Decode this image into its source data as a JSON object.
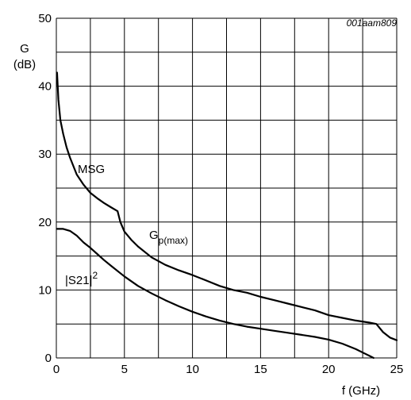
{
  "chart_data": {
    "type": "line",
    "figure_id": "001aam809",
    "ylabel": "G",
    "ylabel_unit": "(dB)",
    "xlabel": "f (GHz)",
    "xlim": [
      0,
      25
    ],
    "ylim": [
      0,
      50
    ],
    "x_ticks": [
      0,
      5,
      10,
      15,
      20,
      25
    ],
    "y_ticks": [
      0,
      10,
      20,
      30,
      40,
      50
    ],
    "grid": true,
    "annotations": [
      {
        "text": "MSG"
      },
      {
        "base": "G",
        "sub": "p(max)"
      },
      {
        "base": "|S21|",
        "sup": "2"
      }
    ],
    "series": [
      {
        "points": [
          [
            0.05,
            42
          ],
          [
            0.15,
            38
          ],
          [
            0.3,
            35
          ],
          [
            0.5,
            33
          ],
          [
            0.75,
            31
          ],
          [
            1.0,
            29.5
          ],
          [
            1.5,
            27
          ],
          [
            2.0,
            25.5
          ],
          [
            2.5,
            24.3
          ],
          [
            3.0,
            23.5
          ],
          [
            3.5,
            22.8
          ],
          [
            4.0,
            22.2
          ],
          [
            4.5,
            21.6
          ],
          [
            4.7,
            20
          ],
          [
            5.0,
            18.6
          ],
          [
            5.5,
            17.4
          ],
          [
            6.0,
            16.4
          ],
          [
            7.0,
            14.8
          ],
          [
            8.0,
            13.7
          ],
          [
            9.0,
            12.9
          ],
          [
            10.0,
            12.2
          ],
          [
            11.0,
            11.4
          ],
          [
            12.0,
            10.6
          ],
          [
            13.0,
            10.0
          ],
          [
            14.0,
            9.6
          ],
          [
            15.0,
            9.0
          ],
          [
            16.0,
            8.5
          ],
          [
            17.0,
            8.0
          ],
          [
            18.0,
            7.5
          ],
          [
            19.0,
            7.0
          ],
          [
            20.0,
            6.3
          ],
          [
            21.0,
            5.9
          ],
          [
            22.0,
            5.5
          ],
          [
            23.0,
            5.2
          ],
          [
            23.5,
            5.0
          ],
          [
            24.0,
            3.8
          ],
          [
            24.5,
            3.0
          ],
          [
            25.0,
            2.6
          ]
        ]
      },
      {
        "points": [
          [
            0.05,
            19.0
          ],
          [
            0.5,
            19.0
          ],
          [
            1.0,
            18.7
          ],
          [
            1.5,
            18.0
          ],
          [
            2.0,
            17.0
          ],
          [
            2.5,
            16.2
          ],
          [
            3.0,
            15.3
          ],
          [
            3.5,
            14.4
          ],
          [
            4.0,
            13.6
          ],
          [
            5.0,
            12.0
          ],
          [
            6.0,
            10.6
          ],
          [
            7.0,
            9.5
          ],
          [
            8.0,
            8.5
          ],
          [
            9.0,
            7.6
          ],
          [
            10.0,
            6.8
          ],
          [
            11.0,
            6.1
          ],
          [
            12.0,
            5.5
          ],
          [
            13.0,
            5.0
          ],
          [
            14.0,
            4.6
          ],
          [
            15.0,
            4.3
          ],
          [
            16.0,
            4.0
          ],
          [
            17.0,
            3.7
          ],
          [
            18.0,
            3.4
          ],
          [
            19.0,
            3.1
          ],
          [
            20.0,
            2.7
          ],
          [
            21.0,
            2.1
          ],
          [
            22.0,
            1.3
          ],
          [
            22.5,
            0.8
          ],
          [
            23.0,
            0.3
          ],
          [
            23.3,
            0.0
          ]
        ]
      }
    ]
  }
}
